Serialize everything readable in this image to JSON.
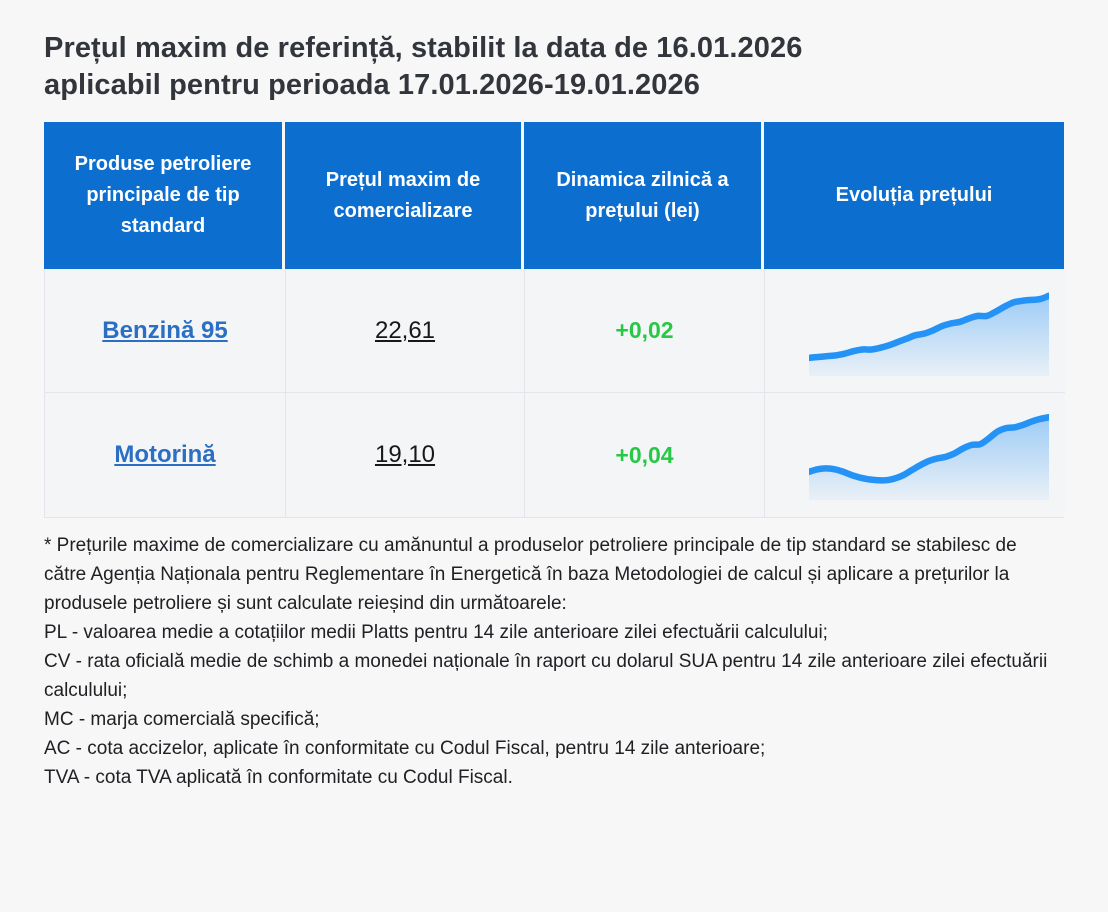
{
  "title": {
    "line1": "Prețul maxim de referință, stabilit la data de 16.01.2026",
    "line2": "aplicabil pentru perioada 17.01.2026-19.01.2026"
  },
  "table": {
    "headers": [
      "Produse petroliere principale de tip standard",
      "Prețul maxim de comercializare",
      "Dinamica zilnică a prețului (lei)",
      "Evoluția prețului"
    ],
    "rows": [
      {
        "product": "Benzină 95",
        "price": "22,61",
        "change": "+0,02"
      },
      {
        "product": "Motorină",
        "price": "19,10",
        "change": "+0,04"
      }
    ]
  },
  "chart_data": [
    {
      "type": "area",
      "title": "Evoluția prețului — Benzină 95",
      "xlabel": "",
      "ylabel": "",
      "note": "sparkline without axes; values are normalized price index estimated from pixels",
      "ylim": [
        0,
        100
      ],
      "grid": false,
      "legend": false,
      "values": [
        18,
        19,
        20,
        21,
        23,
        26,
        28,
        28,
        30,
        33,
        37,
        41,
        45,
        47,
        51,
        56,
        59,
        61,
        65,
        68,
        68,
        73,
        79,
        84,
        86,
        87,
        88,
        92
      ]
    },
    {
      "type": "area",
      "title": "Evoluția prețului — Motorină",
      "xlabel": "",
      "ylabel": "",
      "note": "sparkline without axes; values are normalized price index estimated from pixels",
      "ylim": [
        0,
        100
      ],
      "grid": false,
      "legend": false,
      "values": [
        30,
        33,
        34,
        33,
        30,
        26,
        23,
        21,
        20,
        20,
        22,
        26,
        32,
        38,
        43,
        46,
        48,
        52,
        58,
        62,
        63,
        70,
        78,
        82,
        83,
        86,
        90,
        93,
        95
      ]
    }
  ],
  "footnote": [
    "* Prețurile maxime de comercializare cu amănuntul a produselor petroliere principale de tip standard se stabilesc de către Agenția Naționala pentru Reglementare în Energetică în baza Metodologiei de calcul și aplicare a prețurilor la produsele petroliere și sunt calculate reieșind din următoarele:",
    "PL - valoarea medie a cotațiilor medii Platts pentru 14 zile anterioare zilei efectuării calculului;",
    "CV - rata oficială medie de schimb a monedei naționale în raport cu dolarul SUA pentru 14 zile anterioare zilei efectuării calculului;",
    "MC - marja comercială specifică;",
    "AC - cota accizelor, aplicate în conformitate cu Codul Fiscal, pentru 14 zile anterioare;",
    "TVA - cota TVA aplicată în conformitate cu Codul Fiscal."
  ],
  "colors": {
    "header_blue": "#0c6fd0",
    "link_blue": "#2b6fc4",
    "change_green": "#27c845",
    "spark_line": "#2493f5",
    "page_background": "#f7f7f7",
    "cell_background": "#f4f5f7",
    "title_text": "#32363c",
    "body_text": "#202125"
  }
}
